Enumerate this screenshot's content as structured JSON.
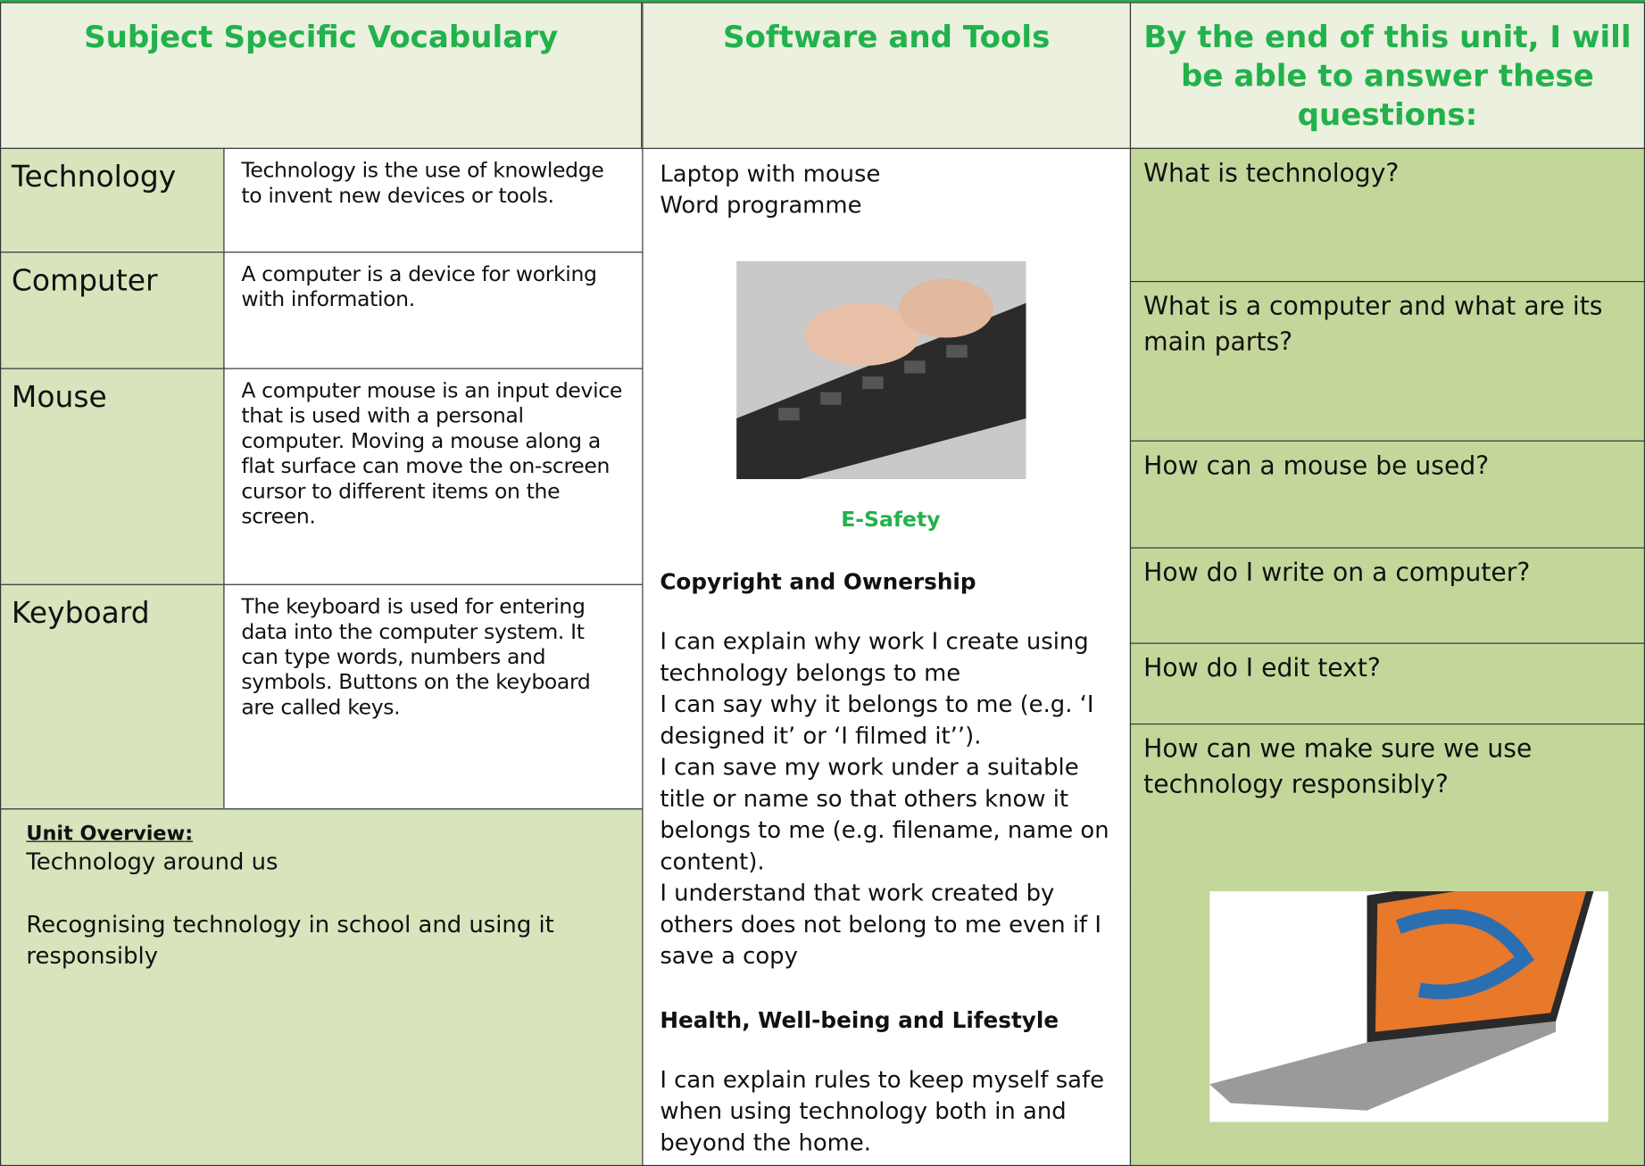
{
  "header": {
    "columns": [
      "Subject Specific Vocabulary",
      "Software and Tools",
      "By the end of this unit, I will be able to answer these questions:"
    ]
  },
  "vocabulary": [
    {
      "term": "Technology",
      "definition": "Technology is the use of knowledge to invent new devices or tools."
    },
    {
      "term": "Computer",
      "definition": "A computer is a device for working with information."
    },
    {
      "term": "Mouse",
      "definition": "A computer mouse is an input device that is used with a personal computer. Moving a mouse along a flat surface can move the on-screen cursor to different items on the screen."
    },
    {
      "term": "Keyboard",
      "definition": "The keyboard is used for entering data into the computer system. It can type words, numbers and symbols. Buttons on the keyboard are called keys."
    }
  ],
  "unit_overview": {
    "label": "Unit Overview:",
    "lines": [
      "Technology around us",
      "Recognising technology in school and using it responsibly"
    ]
  },
  "software": [
    "Laptop with mouse",
    "Word programme"
  ],
  "esafety": {
    "title": "E-Safety",
    "sections": [
      {
        "heading": "Copyright and Ownership",
        "lines": [
          "I can explain why work I create using technology belongs to me",
          "I can say why it belongs to me (e.g. ‘I designed it’ or ‘I filmed it’’).",
          "I can save my work under a suitable title or name so that others know it belongs to me (e.g. filename, name on content).",
          "I understand that work created by others does not belong to me even if I save a copy"
        ]
      },
      {
        "heading": "Health, Well-being and Lifestyle",
        "lines": [
          "I can explain rules to keep myself safe when using technology both in and beyond the home."
        ]
      }
    ]
  },
  "questions": [
    "What is technology?",
    "What is a computer and what are its main parts?",
    "How can a mouse be used?",
    "How do I write on a computer?",
    "How do I edit text?",
    "How can we make sure we use technology responsibly?"
  ]
}
